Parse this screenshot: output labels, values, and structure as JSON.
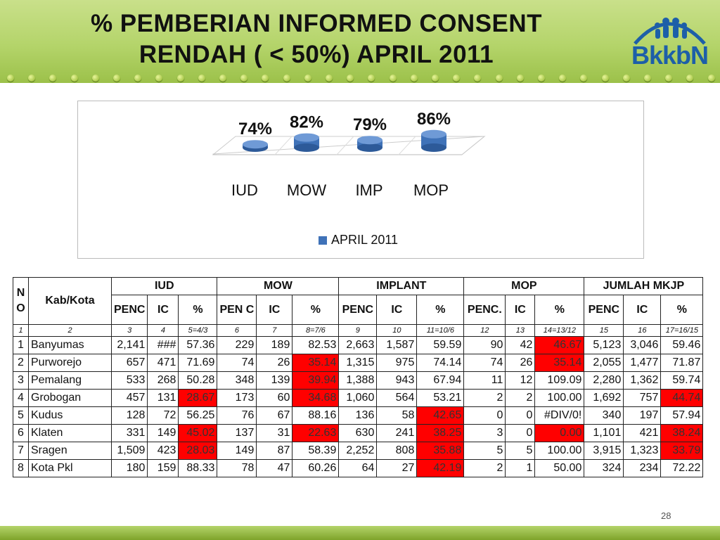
{
  "title": {
    "line1": "% PEMBERIAN INFORMED CONSENT",
    "line2": "RENDAH  ( < 50%) APRIL 2011"
  },
  "logo_text": "BkkbN",
  "page_number": "28",
  "colors": {
    "bar": "#3f72b8",
    "highlight": "#ff0000",
    "header": "#b4d46a"
  },
  "chart_data": {
    "type": "bar",
    "categories": [
      "IUD",
      "MOW",
      "IMP",
      "MOP"
    ],
    "series": [
      {
        "name": "APRIL 2011",
        "values": [
          74,
          82,
          79,
          86
        ]
      }
    ],
    "data_labels": [
      "74%",
      "82%",
      "79%",
      "86%"
    ],
    "legend_position": "bottom"
  },
  "table": {
    "header": {
      "no": "N O",
      "kab": "Kab/Kota",
      "groups": [
        "IUD",
        "MOW",
        "IMPLANT",
        "MOP",
        "JUMLAH MKJP"
      ],
      "sub": [
        "PENC",
        "IC",
        "%",
        "PEN C",
        "IC",
        "%",
        "PENC",
        "IC",
        "%",
        "PENC.",
        "IC",
        "%",
        "PENC",
        "IC",
        "%"
      ],
      "index": [
        "1",
        "2",
        "3",
        "4",
        "5=4/3",
        "6",
        "7",
        "8=7/6",
        "9",
        "10",
        "11=10/6",
        "12",
        "13",
        "14=13/12",
        "15",
        "16",
        "17=16/15"
      ]
    },
    "rows": [
      [
        "1",
        "Banyumas",
        "2,141",
        "###",
        "57.36",
        "229",
        "189",
        "82.53",
        "2,663",
        "1,587",
        "59.59",
        "90",
        "42",
        "46.67",
        "5,123",
        "3,046",
        "59.46"
      ],
      [
        "2",
        "Purworejo",
        "657",
        "471",
        "71.69",
        "74",
        "26",
        "35.14",
        "1,315",
        "975",
        "74.14",
        "74",
        "26",
        "35.14",
        "2,055",
        "1,477",
        "71.87"
      ],
      [
        "3",
        "Pemalang",
        "533",
        "268",
        "50.28",
        "348",
        "139",
        "39.94",
        "1,388",
        "943",
        "67.94",
        "11",
        "12",
        "109.09",
        "2,280",
        "1,362",
        "59.74"
      ],
      [
        "4",
        "Grobogan",
        "457",
        "131",
        "28.67",
        "173",
        "60",
        "34.68",
        "1,060",
        "564",
        "53.21",
        "2",
        "2",
        "100.00",
        "1,692",
        "757",
        "44.74"
      ],
      [
        "5",
        "Kudus",
        "128",
        "72",
        "56.25",
        "76",
        "67",
        "88.16",
        "136",
        "58",
        "42.65",
        "0",
        "0",
        "#DIV/0!",
        "340",
        "197",
        "57.94"
      ],
      [
        "6",
        "Klaten",
        "331",
        "149",
        "45.02",
        "137",
        "31",
        "22.63",
        "630",
        "241",
        "38.25",
        "3",
        "0",
        "0.00",
        "1,101",
        "421",
        "38.24"
      ],
      [
        "7",
        "Sragen",
        "1,509",
        "423",
        "28.03",
        "149",
        "87",
        "58.39",
        "2,252",
        "808",
        "35.88",
        "5",
        "5",
        "100.00",
        "3,915",
        "1,323",
        "33.79"
      ],
      [
        "8",
        "Kota Pkl",
        "180",
        "159",
        "88.33",
        "78",
        "47",
        "60.26",
        "64",
        "27",
        "42.19",
        "2",
        "1",
        "50.00",
        "324",
        "234",
        "72.22"
      ]
    ]
  }
}
